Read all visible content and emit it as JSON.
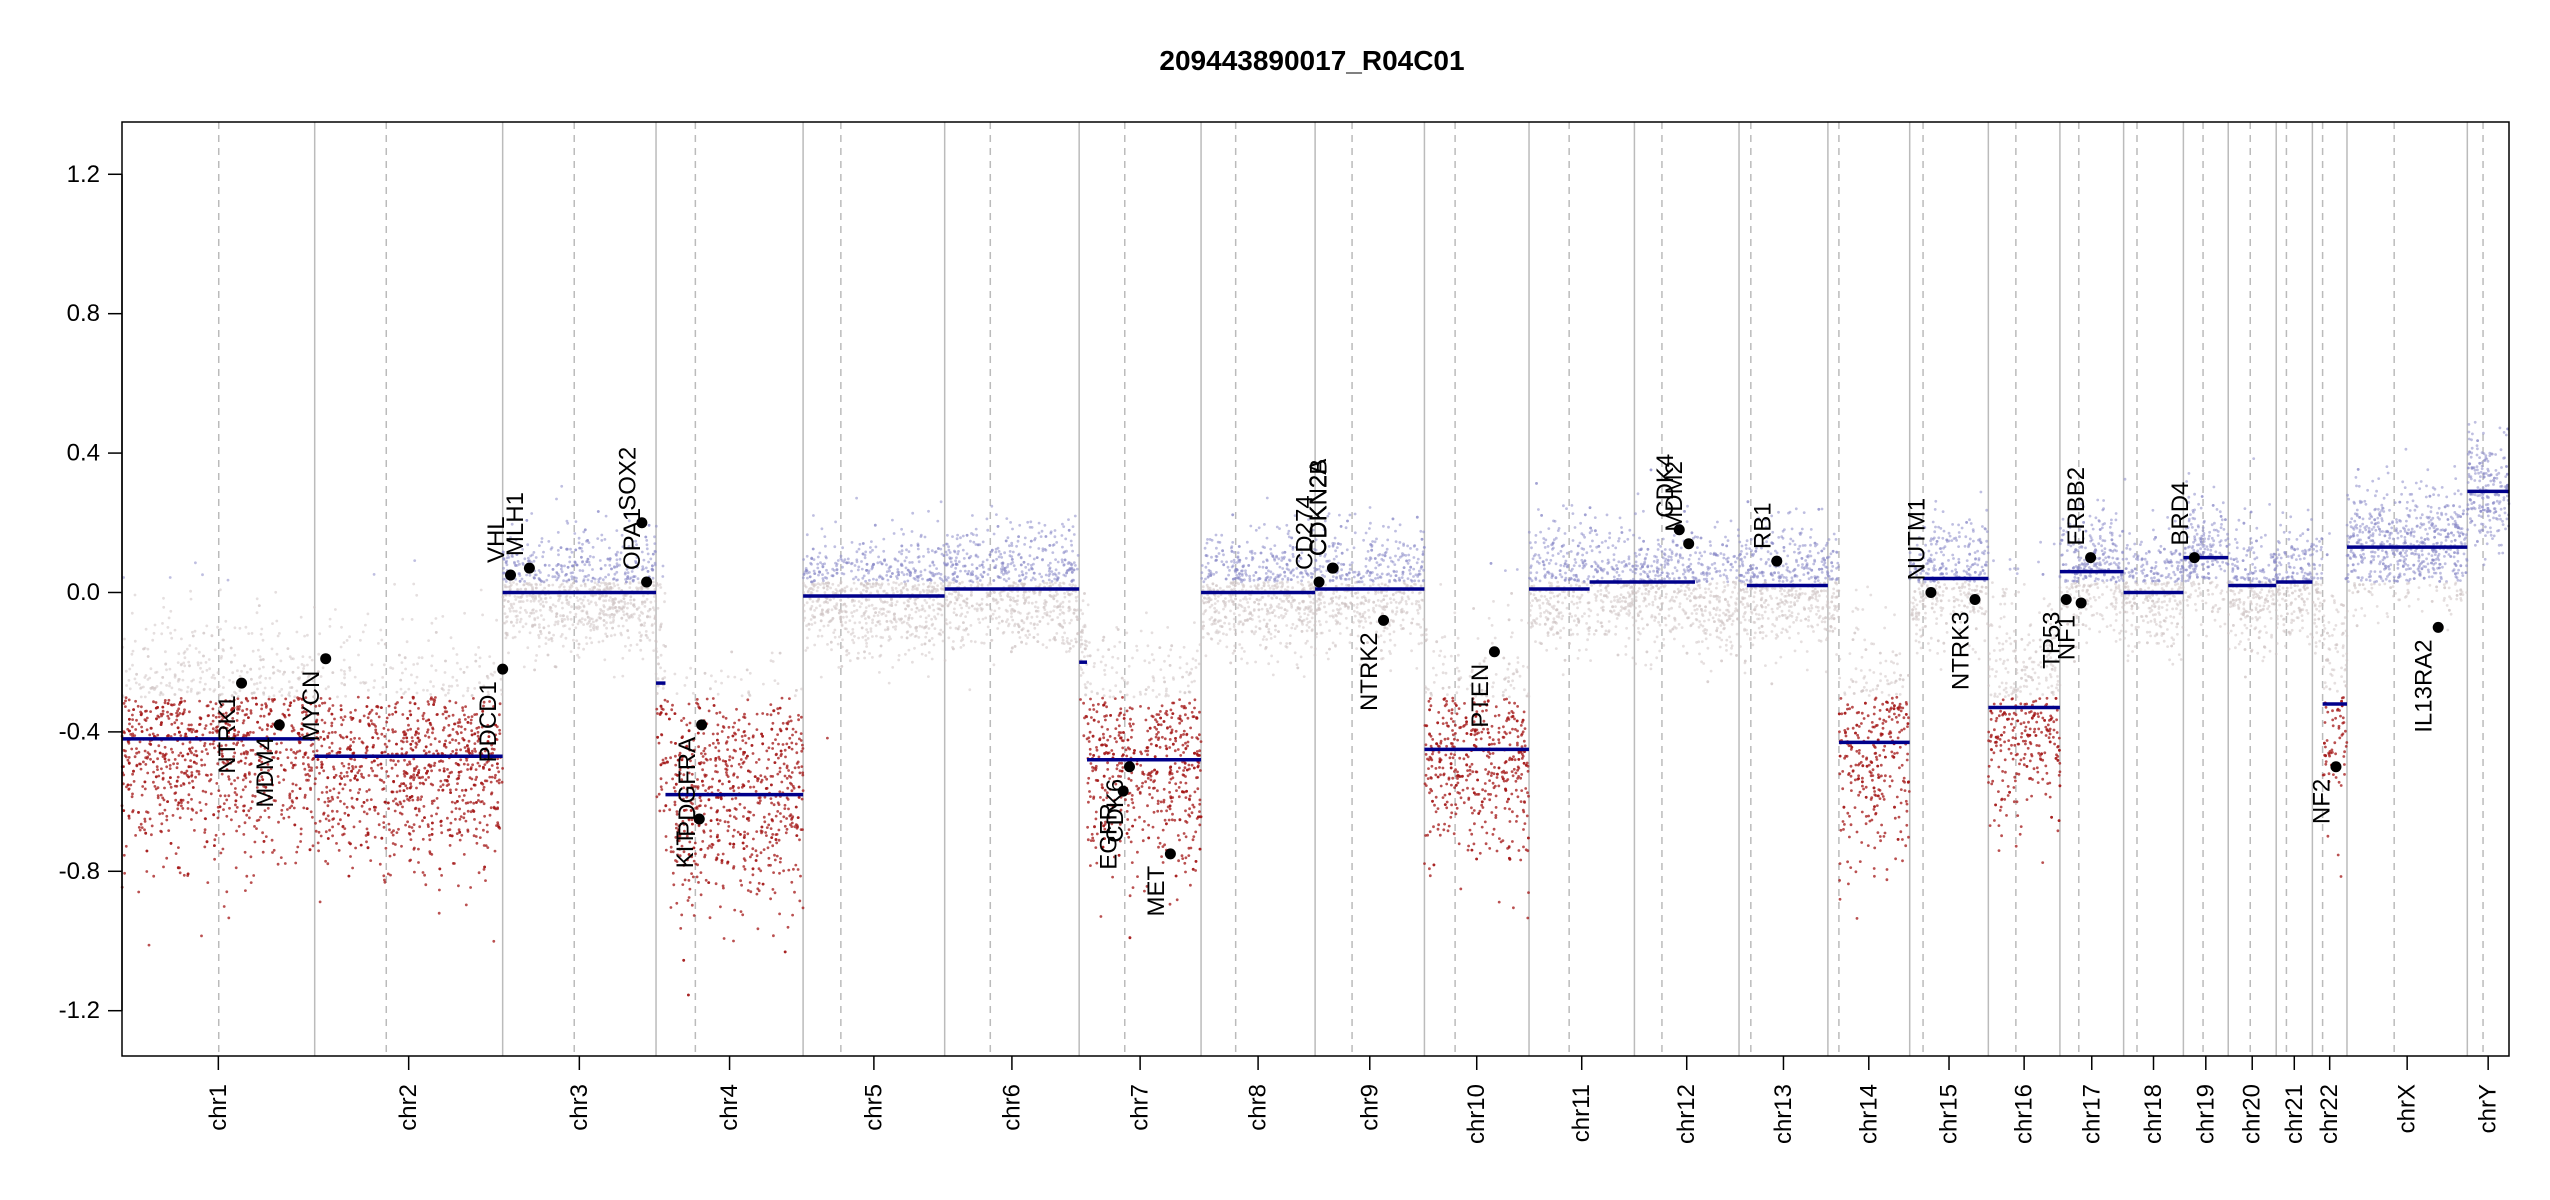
{
  "chart_data": {
    "type": "scatter",
    "title": "209443890017_R04C01",
    "xlabel": "",
    "ylabel": "",
    "ylim": [
      -1.33,
      1.35
    ],
    "yticks": [
      -1.2,
      -0.8,
      -0.4,
      0.0,
      0.4,
      0.8,
      1.2
    ],
    "ytick_labels": [
      "-1.2",
      "-0.8",
      "-0.4",
      "0.0",
      "0.4",
      "0.8",
      "1.2"
    ],
    "genome_length": 3035,
    "colors": {
      "gain": "#8a8ac8",
      "loss": "#a31515",
      "neutral": "#cfc4c4",
      "segment": "#00008b",
      "boundary": "#bbbbbb",
      "marker": "#000000"
    },
    "chromosomes": [
      {
        "name": "chr1",
        "start": 0,
        "end": 245,
        "centromere": 123
      },
      {
        "name": "chr2",
        "start": 245,
        "end": 484,
        "centromere": 336
      },
      {
        "name": "chr3",
        "start": 484,
        "end": 679,
        "centromere": 575
      },
      {
        "name": "chr4",
        "start": 679,
        "end": 866,
        "centromere": 729
      },
      {
        "name": "chr5",
        "start": 866,
        "end": 1046,
        "centromere": 914
      },
      {
        "name": "chr6",
        "start": 1046,
        "end": 1217,
        "centromere": 1104
      },
      {
        "name": "chr7",
        "start": 1217,
        "end": 1372,
        "centromere": 1275
      },
      {
        "name": "chr8",
        "start": 1372,
        "end": 1517,
        "centromere": 1416
      },
      {
        "name": "chr9",
        "start": 1517,
        "end": 1656,
        "centromere": 1564
      },
      {
        "name": "chr10",
        "start": 1656,
        "end": 1789,
        "centromere": 1695
      },
      {
        "name": "chr11",
        "start": 1789,
        "end": 1923,
        "centromere": 1840
      },
      {
        "name": "chr12",
        "start": 1923,
        "end": 2056,
        "centromere": 1958
      },
      {
        "name": "chr13",
        "start": 2056,
        "end": 2169,
        "centromere": 2071
      },
      {
        "name": "chr14",
        "start": 2169,
        "end": 2273,
        "centromere": 2183
      },
      {
        "name": "chr15",
        "start": 2273,
        "end": 2373,
        "centromere": 2290
      },
      {
        "name": "chr16",
        "start": 2373,
        "end": 2464,
        "centromere": 2408
      },
      {
        "name": "chr17",
        "start": 2464,
        "end": 2545,
        "centromere": 2488
      },
      {
        "name": "chr18",
        "start": 2545,
        "end": 2621,
        "centromere": 2562
      },
      {
        "name": "chr19",
        "start": 2621,
        "end": 2678,
        "centromere": 2646
      },
      {
        "name": "chr20",
        "start": 2678,
        "end": 2739,
        "centromere": 2706
      },
      {
        "name": "chr21",
        "start": 2739,
        "end": 2785,
        "centromere": 2752
      },
      {
        "name": "chr22",
        "start": 2785,
        "end": 2829,
        "centromere": 2798
      },
      {
        "name": "chrX",
        "start": 2829,
        "end": 2982,
        "centromere": 2889
      },
      {
        "name": "chrY",
        "start": 2982,
        "end": 3035,
        "centromere": 3002
      }
    ],
    "segments": [
      {
        "start": 0,
        "end": 245,
        "value": -0.42
      },
      {
        "start": 245,
        "end": 484,
        "value": -0.47
      },
      {
        "start": 484,
        "end": 679,
        "value": 0.0
      },
      {
        "start": 679,
        "end": 691,
        "value": -0.26
      },
      {
        "start": 691,
        "end": 866,
        "value": -0.58
      },
      {
        "start": 866,
        "end": 1046,
        "value": -0.01
      },
      {
        "start": 1046,
        "end": 1217,
        "value": 0.01
      },
      {
        "start": 1217,
        "end": 1227,
        "value": -0.2
      },
      {
        "start": 1227,
        "end": 1372,
        "value": -0.48
      },
      {
        "start": 1372,
        "end": 1517,
        "value": 0.0
      },
      {
        "start": 1517,
        "end": 1656,
        "value": 0.01
      },
      {
        "start": 1656,
        "end": 1789,
        "value": -0.45
      },
      {
        "start": 1789,
        "end": 1866,
        "value": 0.01
      },
      {
        "start": 1866,
        "end": 2000,
        "value": 0.03
      },
      {
        "start": 2066,
        "end": 2169,
        "value": 0.02
      },
      {
        "start": 2183,
        "end": 2273,
        "value": -0.43
      },
      {
        "start": 2290,
        "end": 2373,
        "value": 0.04
      },
      {
        "start": 2373,
        "end": 2464,
        "value": -0.33
      },
      {
        "start": 2464,
        "end": 2545,
        "value": 0.06
      },
      {
        "start": 2545,
        "end": 2621,
        "value": 0.0
      },
      {
        "start": 2621,
        "end": 2678,
        "value": 0.1
      },
      {
        "start": 2678,
        "end": 2739,
        "value": 0.02
      },
      {
        "start": 2739,
        "end": 2785,
        "value": 0.03
      },
      {
        "start": 2798,
        "end": 2829,
        "value": -0.32
      },
      {
        "start": 2829,
        "end": 2982,
        "value": 0.13
      },
      {
        "start": 2982,
        "end": 3035,
        "value": 0.29
      }
    ],
    "genes": [
      {
        "name": "NTRK1",
        "pos": 152,
        "value": -0.26
      },
      {
        "name": "MDM4",
        "pos": 200,
        "value": -0.38
      },
      {
        "name": "MYCN",
        "pos": 259,
        "value": -0.19
      },
      {
        "name": "PDCD1",
        "pos": 484,
        "value": -0.22
      },
      {
        "name": "VHL",
        "pos": 494,
        "value": 0.05
      },
      {
        "name": "MLH1",
        "pos": 518,
        "value": 0.07
      },
      {
        "name": "SOX2",
        "pos": 661,
        "value": 0.2
      },
      {
        "name": "OPA1",
        "pos": 667,
        "value": 0.03
      },
      {
        "name": "KIT",
        "pos": 734,
        "value": -0.65
      },
      {
        "name": "PDGFRA",
        "pos": 737,
        "value": -0.38
      },
      {
        "name": "EGFR",
        "pos": 1273,
        "value": -0.57
      },
      {
        "name": "CDK6",
        "pos": 1281,
        "value": -0.5
      },
      {
        "name": "MET",
        "pos": 1333,
        "value": -0.75
      },
      {
        "name": "CD274",
        "pos": 1522,
        "value": 0.03
      },
      {
        "name": "CDKN2A",
        "pos": 1539,
        "value": 0.07
      },
      {
        "name": "CDKN2B",
        "pos": 1540,
        "value": 0.07
      },
      {
        "name": "NTRK2",
        "pos": 1604,
        "value": -0.08
      },
      {
        "name": "PTEN",
        "pos": 1745,
        "value": -0.17
      },
      {
        "name": "CDK4",
        "pos": 1980,
        "value": 0.18
      },
      {
        "name": "MDM2",
        "pos": 1992,
        "value": 0.14
      },
      {
        "name": "RB1",
        "pos": 2104,
        "value": 0.09
      },
      {
        "name": "NUTM1",
        "pos": 2300,
        "value": 0.0
      },
      {
        "name": "NTRK3",
        "pos": 2356,
        "value": -0.02
      },
      {
        "name": "TP53",
        "pos": 2472,
        "value": -0.02
      },
      {
        "name": "NF1",
        "pos": 2491,
        "value": -0.03
      },
      {
        "name": "ERBB2",
        "pos": 2503,
        "value": 0.1
      },
      {
        "name": "BRD4",
        "pos": 2635,
        "value": 0.1
      },
      {
        "name": "NF2",
        "pos": 2815,
        "value": -0.5
      },
      {
        "name": "IL13RA2",
        "pos": 2945,
        "value": -0.1
      }
    ]
  }
}
